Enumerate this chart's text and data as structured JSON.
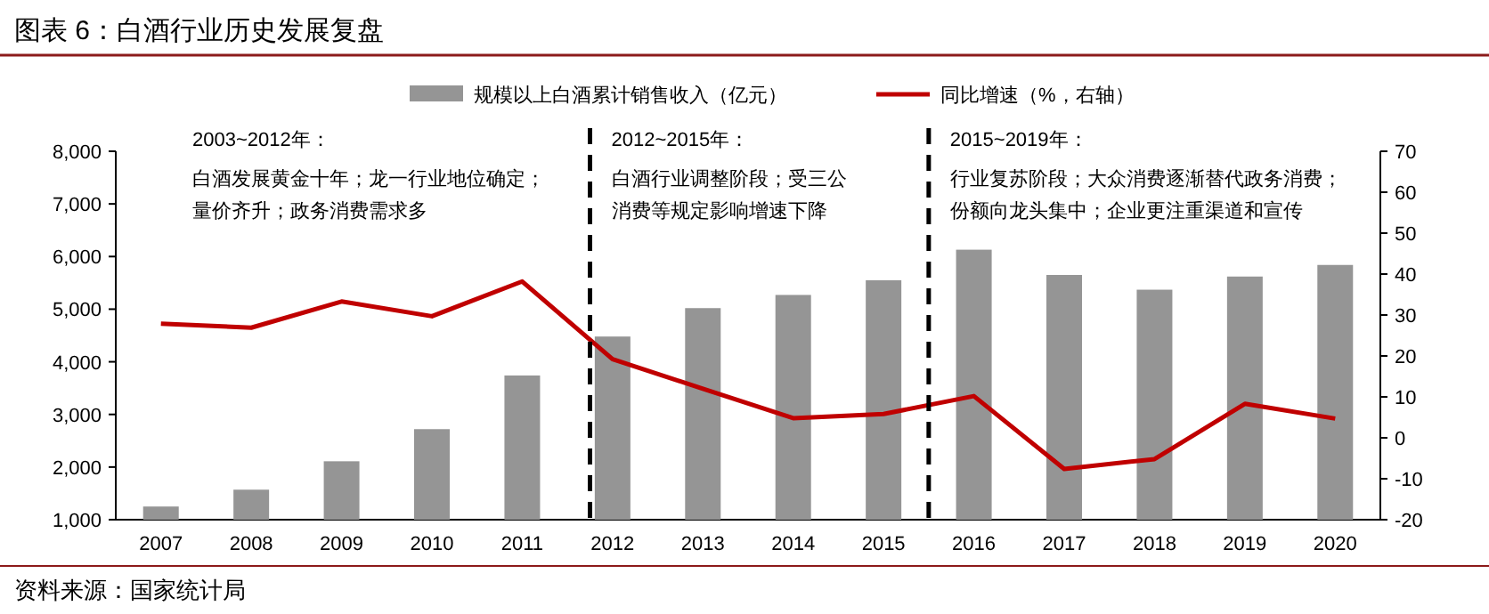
{
  "chart_data": {
    "type": "bar",
    "title": "图表 6：白酒行业历史发展复盘",
    "categories": [
      "2007",
      "2008",
      "2009",
      "2010",
      "2011",
      "2012",
      "2013",
      "2014",
      "2015",
      "2016",
      "2017",
      "2018",
      "2019",
      "2020"
    ],
    "series": [
      {
        "name": "规模以上白酒累计销售收入（亿元）",
        "color": "#959595",
        "values": [
          1250,
          1570,
          2110,
          2720,
          3740,
          4480,
          5020,
          5270,
          5550,
          6130,
          5650,
          5370,
          5620,
          5840
        ]
      },
      {
        "name": "同比增速（%，右轴）",
        "type": "line",
        "axis": "y2",
        "color": "#c00000",
        "values": [
          27.9,
          26.9,
          33.3,
          29.7,
          38.2,
          19.2,
          12.0,
          4.8,
          5.8,
          10.2,
          -7.6,
          -5.2,
          8.3,
          4.7
        ]
      }
    ],
    "ylim": [
      1000,
      8000
    ],
    "yticks": [
      {
        "value": 1000,
        "label": "1,000"
      },
      {
        "value": 2000,
        "label": "2,000"
      },
      {
        "value": 3000,
        "label": "3,000"
      },
      {
        "value": 4000,
        "label": "4,000"
      },
      {
        "value": 5000,
        "label": "5,000"
      },
      {
        "value": 6000,
        "label": "6,000"
      },
      {
        "value": 7000,
        "label": "7,000"
      },
      {
        "value": 8000,
        "label": "8,000"
      }
    ],
    "y2lim": [
      -20,
      70
    ],
    "y2ticks": [
      -20,
      -10,
      0,
      10,
      20,
      30,
      40,
      50,
      60,
      70
    ],
    "annotations": [
      "2003~2012年：",
      "白酒发展黄金十年；龙一行业地位确定；",
      "量价齐升；政务消费需求多",
      "2012~2015年：",
      "白酒行业调整阶段；受三公",
      "消费等规定影响增速下降",
      "2015~2019年：",
      "行业复苏阶段；大众消费逐渐替代政务消费；",
      "份额向龙头集中；企业更注重渠道和宣传",
      "资料来源：国家统计局"
    ],
    "legend": "top",
    "grid": false,
    "marker": "none",
    "line_style": "solid"
  }
}
